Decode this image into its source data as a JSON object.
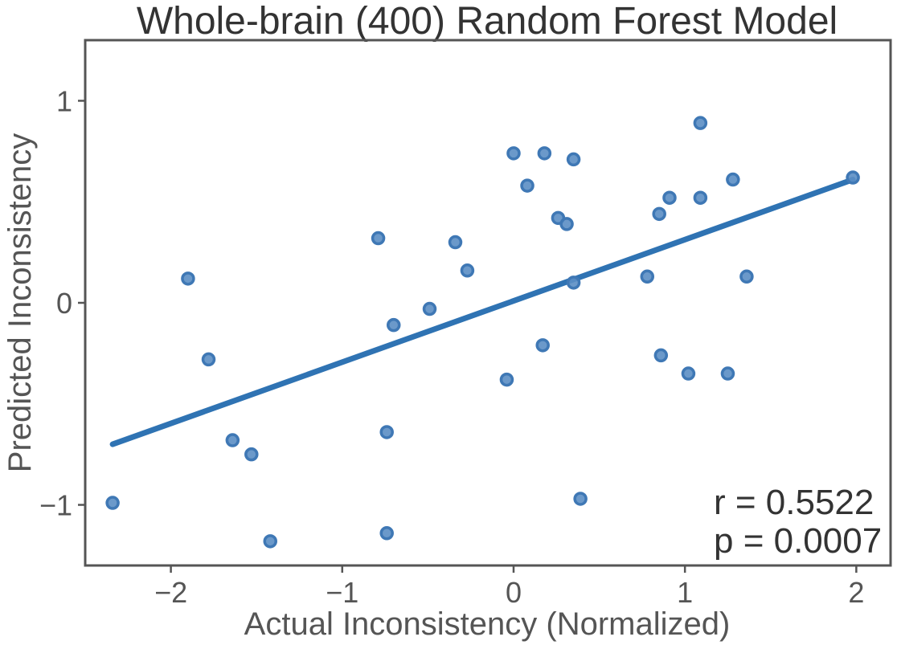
{
  "chart_data": {
    "type": "scatter",
    "title": "Whole-brain (400) Random Forest Model",
    "xlabel": "Actual Inconsistency (Normalized)",
    "ylabel": "Predicted Inconsistency",
    "xlim": [
      -2.5,
      2.2
    ],
    "ylim": [
      -1.3,
      1.3
    ],
    "xticks": [
      -2,
      -1,
      0,
      1,
      2
    ],
    "xtick_labels": [
      "−2",
      "−1",
      "0",
      "1",
      "2"
    ],
    "yticks": [
      -1,
      0,
      1
    ],
    "ytick_labels": [
      "−1",
      "0",
      "1"
    ],
    "grid": false,
    "point_color": "#5b8ec4",
    "line_color": "#2f73b3",
    "points": [
      {
        "x": -2.34,
        "y": -0.99
      },
      {
        "x": -1.9,
        "y": 0.12
      },
      {
        "x": -1.78,
        "y": -0.28
      },
      {
        "x": -1.64,
        "y": -0.68
      },
      {
        "x": -1.53,
        "y": -0.75
      },
      {
        "x": -1.42,
        "y": -1.18
      },
      {
        "x": -0.79,
        "y": 0.32
      },
      {
        "x": -0.74,
        "y": -0.64
      },
      {
        "x": -0.74,
        "y": -1.14
      },
      {
        "x": -0.7,
        "y": -0.11
      },
      {
        "x": -0.49,
        "y": -0.03
      },
      {
        "x": -0.34,
        "y": 0.3
      },
      {
        "x": -0.27,
        "y": 0.16
      },
      {
        "x": -0.04,
        "y": -0.38
      },
      {
        "x": 0.0,
        "y": 0.74
      },
      {
        "x": 0.08,
        "y": 0.58
      },
      {
        "x": 0.17,
        "y": -0.21
      },
      {
        "x": 0.18,
        "y": 0.74
      },
      {
        "x": 0.26,
        "y": 0.42
      },
      {
        "x": 0.31,
        "y": 0.39
      },
      {
        "x": 0.35,
        "y": 0.71
      },
      {
        "x": 0.35,
        "y": 0.1
      },
      {
        "x": 0.39,
        "y": -0.97
      },
      {
        "x": 0.78,
        "y": 0.13
      },
      {
        "x": 0.85,
        "y": 0.44
      },
      {
        "x": 0.86,
        "y": -0.26
      },
      {
        "x": 0.91,
        "y": 0.52
      },
      {
        "x": 1.02,
        "y": -0.35
      },
      {
        "x": 1.09,
        "y": 0.89
      },
      {
        "x": 1.09,
        "y": 0.52
      },
      {
        "x": 1.25,
        "y": -0.35
      },
      {
        "x": 1.28,
        "y": 0.61
      },
      {
        "x": 1.36,
        "y": 0.13
      },
      {
        "x": 1.98,
        "y": 0.62
      }
    ],
    "fit_line": {
      "x": [
        -2.34,
        1.98
      ],
      "y": [
        -0.7,
        0.61
      ]
    },
    "annotations": {
      "r_text": "r = 0.5522",
      "p_text": "p = 0.0007"
    }
  }
}
